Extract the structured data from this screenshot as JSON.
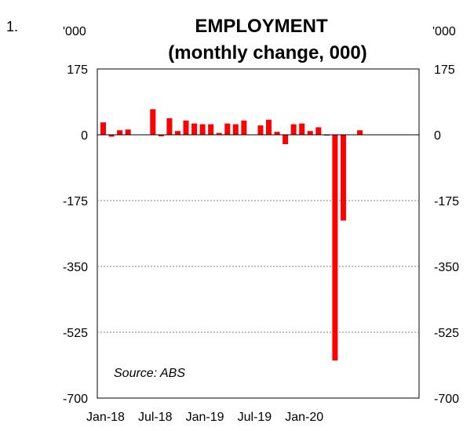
{
  "figure_number": "1.",
  "chart_data": {
    "type": "bar",
    "title": "EMPLOYMENT",
    "subtitle": "(monthly change, 000)",
    "unit_left": "'000",
    "unit_right": "'000",
    "source": "Source: ABS",
    "ylim": [
      -700,
      175
    ],
    "yticks": [
      175,
      0,
      -175,
      -350,
      -525,
      -700
    ],
    "ytick_labels": [
      "175",
      "0",
      "-175",
      "-350",
      "-525",
      "-700"
    ],
    "x_tick_labels": [
      "Jan-18",
      "Jul-18",
      "Jan-19",
      "Jul-19",
      "Jan-20"
    ],
    "x_tick_month_index": [
      0,
      6,
      12,
      18,
      24
    ],
    "grid": true,
    "months": [
      "Jan-18",
      "Feb-18",
      "Mar-18",
      "Apr-18",
      "May-18",
      "Jun-18",
      "Jul-18",
      "Aug-18",
      "Sep-18",
      "Oct-18",
      "Nov-18",
      "Dec-18",
      "Jan-19",
      "Feb-19",
      "Mar-19",
      "Apr-19",
      "May-19",
      "Jun-19",
      "Jul-19",
      "Aug-19",
      "Sep-19",
      "Oct-19",
      "Nov-19",
      "Dec-19",
      "Jan-20",
      "Feb-20",
      "Mar-20",
      "Apr-20",
      "May-20",
      "Jun-20",
      "Jul-20",
      "Aug-20"
    ],
    "values": [
      33,
      -5,
      12,
      14,
      null,
      null,
      68,
      -4,
      44,
      10,
      38,
      30,
      28,
      28,
      5,
      30,
      28,
      38,
      null,
      25,
      40,
      8,
      -25,
      28,
      30,
      10,
      20,
      -2,
      -600,
      -228,
      null,
      12
    ],
    "bar_color": "#ff0000"
  }
}
